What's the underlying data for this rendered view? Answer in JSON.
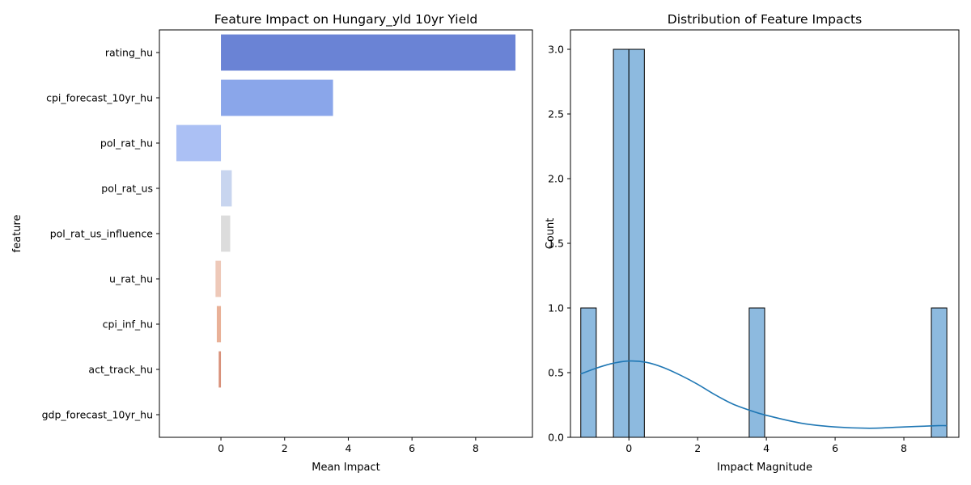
{
  "chart_data": [
    {
      "type": "bar",
      "orientation": "horizontal",
      "title": "Feature Impact on Hungary_yld 10yr Yield",
      "xlabel": "Mean Impact",
      "ylabel": "feature",
      "categories": [
        "rating_hu",
        "cpi_forecast_10yr_hu",
        "pol_rat_hu",
        "pol_rat_us",
        "pol_rat_us_influence",
        "u_rat_hu",
        "cpi_inf_hu",
        "act_track_hu",
        "gdp_forecast_10yr_hu"
      ],
      "values": [
        9.25,
        3.52,
        -1.4,
        0.34,
        0.29,
        -0.17,
        -0.13,
        -0.07,
        0.0
      ],
      "colors": [
        "#6a83d5",
        "#8aa6ea",
        "#abc0f4",
        "#c8d5ef",
        "#dcdcdc",
        "#eec9b9",
        "#e9b198",
        "#d8917a",
        "#c97265"
      ],
      "xlim": [
        -1.4,
        9.25
      ],
      "xticks": [
        0,
        2,
        4,
        6,
        8
      ],
      "xtick_labels": [
        "0",
        "2",
        "4",
        "6",
        "8"
      ],
      "grid": false
    },
    {
      "type": "histogram",
      "title": "Distribution of Feature Impacts",
      "xlabel": "Impact Magnitude",
      "ylabel": "Count",
      "bins": [
        {
          "x0": -1.4,
          "x1": -0.95,
          "count": 1
        },
        {
          "x0": -0.45,
          "x1": 0.0,
          "count": 3
        },
        {
          "x0": 0.0,
          "x1": 0.45,
          "count": 3
        },
        {
          "x0": 3.5,
          "x1": 3.95,
          "count": 1
        },
        {
          "x0": 8.8,
          "x1": 9.25,
          "count": 1
        }
      ],
      "kde": {
        "color": "#1f77b4",
        "points": [
          [
            -1.4,
            0.49
          ],
          [
            -1.0,
            0.53
          ],
          [
            -0.5,
            0.57
          ],
          [
            0.0,
            0.59
          ],
          [
            0.5,
            0.58
          ],
          [
            1.0,
            0.54
          ],
          [
            1.5,
            0.48
          ],
          [
            2.0,
            0.41
          ],
          [
            2.5,
            0.33
          ],
          [
            3.0,
            0.26
          ],
          [
            3.5,
            0.21
          ],
          [
            4.0,
            0.17
          ],
          [
            5.0,
            0.11
          ],
          [
            6.0,
            0.08
          ],
          [
            7.0,
            0.07
          ],
          [
            8.0,
            0.08
          ],
          [
            9.0,
            0.09
          ],
          [
            9.25,
            0.09
          ]
        ]
      },
      "bar_color": "#8dbadf",
      "xlim": [
        -1.7,
        9.6
      ],
      "ylim": [
        0,
        3.15
      ],
      "xticks": [
        0,
        2,
        4,
        6,
        8
      ],
      "xtick_labels": [
        "0",
        "2",
        "4",
        "6",
        "8"
      ],
      "yticks": [
        0.0,
        0.5,
        1.0,
        1.5,
        2.0,
        2.5,
        3.0
      ],
      "ytick_labels": [
        "0.0",
        "0.5",
        "1.0",
        "1.5",
        "2.0",
        "2.5",
        "3.0"
      ],
      "grid": false
    }
  ]
}
